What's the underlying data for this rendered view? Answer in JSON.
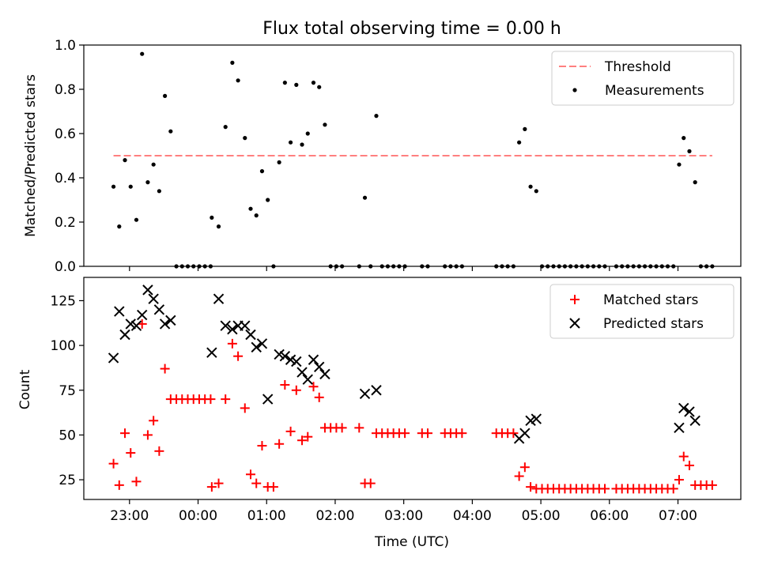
{
  "chart_data": [
    {
      "type": "scatter",
      "title": "Flux total observing time = 0.00 h",
      "xlabel": "",
      "ylabel": "Matched/Predicted stars",
      "ylim": [
        0,
        1.0
      ],
      "yticks": [
        "0.0",
        "0.2",
        "0.4",
        "0.6",
        "0.8",
        "1.0"
      ],
      "legend_position": "top-right",
      "threshold": {
        "name": "Threshold",
        "value": 0.5,
        "x_range": [
          "22:46",
          "07:30"
        ],
        "color": "#ff7f7f",
        "style": "dashed"
      },
      "series": [
        {
          "name": "Measurements",
          "color": "#000000",
          "marker": "dot",
          "points": [
            [
              "22:46",
              0.36
            ],
            [
              "22:51",
              0.18
            ],
            [
              "22:56",
              0.48
            ],
            [
              "23:01",
              0.36
            ],
            [
              "23:06",
              0.21
            ],
            [
              "23:11",
              0.96
            ],
            [
              "23:16",
              0.38
            ],
            [
              "23:21",
              0.46
            ],
            [
              "23:26",
              0.34
            ],
            [
              "23:31",
              0.77
            ],
            [
              "23:36",
              0.61
            ],
            [
              "23:41",
              0.0
            ],
            [
              "23:46",
              0.0
            ],
            [
              "23:51",
              0.0
            ],
            [
              "23:56",
              0.0
            ],
            [
              "00:01",
              0.0
            ],
            [
              "00:06",
              0.0
            ],
            [
              "00:11",
              0.0
            ],
            [
              "00:12",
              0.22
            ],
            [
              "00:18",
              0.18
            ],
            [
              "00:24",
              0.63
            ],
            [
              "00:30",
              0.92
            ],
            [
              "00:35",
              0.84
            ],
            [
              "00:41",
              0.58
            ],
            [
              "00:46",
              0.26
            ],
            [
              "00:51",
              0.23
            ],
            [
              "00:56",
              0.43
            ],
            [
              "01:01",
              0.3
            ],
            [
              "01:06",
              0.0
            ],
            [
              "01:11",
              0.47
            ],
            [
              "01:16",
              0.83
            ],
            [
              "01:21",
              0.56
            ],
            [
              "01:26",
              0.82
            ],
            [
              "01:31",
              0.55
            ],
            [
              "01:36",
              0.6
            ],
            [
              "01:41",
              0.83
            ],
            [
              "01:46",
              0.81
            ],
            [
              "01:51",
              0.64
            ],
            [
              "01:56",
              0.0
            ],
            [
              "02:01",
              0.0
            ],
            [
              "02:06",
              0.0
            ],
            [
              "02:21",
              0.0
            ],
            [
              "02:26",
              0.31
            ],
            [
              "02:31",
              0.0
            ],
            [
              "02:36",
              0.68
            ],
            [
              "02:41",
              0.0
            ],
            [
              "02:46",
              0.0
            ],
            [
              "02:51",
              0.0
            ],
            [
              "02:56",
              0.0
            ],
            [
              "03:01",
              0.0
            ],
            [
              "03:16",
              0.0
            ],
            [
              "03:21",
              0.0
            ],
            [
              "03:36",
              0.0
            ],
            [
              "03:41",
              0.0
            ],
            [
              "03:46",
              0.0
            ],
            [
              "03:51",
              0.0
            ],
            [
              "04:21",
              0.0
            ],
            [
              "04:26",
              0.0
            ],
            [
              "04:31",
              0.0
            ],
            [
              "04:36",
              0.0
            ],
            [
              "04:41",
              0.56
            ],
            [
              "04:46",
              0.62
            ],
            [
              "04:51",
              0.36
            ],
            [
              "04:56",
              0.34
            ],
            [
              "05:01",
              0.0
            ],
            [
              "05:06",
              0.0
            ],
            [
              "05:11",
              0.0
            ],
            [
              "05:16",
              0.0
            ],
            [
              "05:21",
              0.0
            ],
            [
              "05:26",
              0.0
            ],
            [
              "05:31",
              0.0
            ],
            [
              "05:36",
              0.0
            ],
            [
              "05:41",
              0.0
            ],
            [
              "05:46",
              0.0
            ],
            [
              "05:51",
              0.0
            ],
            [
              "05:56",
              0.0
            ],
            [
              "06:06",
              0.0
            ],
            [
              "06:11",
              0.0
            ],
            [
              "06:16",
              0.0
            ],
            [
              "06:21",
              0.0
            ],
            [
              "06:26",
              0.0
            ],
            [
              "06:31",
              0.0
            ],
            [
              "06:36",
              0.0
            ],
            [
              "06:41",
              0.0
            ],
            [
              "06:46",
              0.0
            ],
            [
              "06:51",
              0.0
            ],
            [
              "06:56",
              0.0
            ],
            [
              "07:01",
              0.46
            ],
            [
              "07:05",
              0.58
            ],
            [
              "07:10",
              0.52
            ],
            [
              "07:15",
              0.38
            ],
            [
              "07:20",
              0.0
            ],
            [
              "07:25",
              0.0
            ],
            [
              "07:30",
              0.0
            ]
          ]
        }
      ]
    },
    {
      "type": "scatter",
      "title": "",
      "xlabel": "Time (UTC)",
      "ylabel": "Count",
      "ylim": [
        14,
        138
      ],
      "yticks": [
        "25",
        "50",
        "75",
        "100",
        "125"
      ],
      "legend_position": "top-right",
      "series": [
        {
          "name": "Matched stars",
          "color": "#ff0000",
          "marker": "plus",
          "points": [
            [
              "22:46",
              34
            ],
            [
              "22:51",
              22
            ],
            [
              "22:56",
              51
            ],
            [
              "23:01",
              40
            ],
            [
              "23:06",
              24
            ],
            [
              "23:11",
              112
            ],
            [
              "23:16",
              50
            ],
            [
              "23:21",
              58
            ],
            [
              "23:26",
              41
            ],
            [
              "23:31",
              87
            ],
            [
              "23:36",
              70
            ],
            [
              "23:41",
              70
            ],
            [
              "23:46",
              70
            ],
            [
              "23:51",
              70
            ],
            [
              "23:56",
              70
            ],
            [
              "00:01",
              70
            ],
            [
              "00:06",
              70
            ],
            [
              "00:11",
              70
            ],
            [
              "00:12",
              21
            ],
            [
              "00:18",
              23
            ],
            [
              "00:24",
              70
            ],
            [
              "00:30",
              101
            ],
            [
              "00:35",
              94
            ],
            [
              "00:41",
              65
            ],
            [
              "00:46",
              28
            ],
            [
              "00:51",
              23
            ],
            [
              "00:56",
              44
            ],
            [
              "01:01",
              21
            ],
            [
              "01:06",
              21
            ],
            [
              "01:11",
              45
            ],
            [
              "01:16",
              78
            ],
            [
              "01:21",
              52
            ],
            [
              "01:26",
              75
            ],
            [
              "01:31",
              47
            ],
            [
              "01:36",
              49
            ],
            [
              "01:41",
              77
            ],
            [
              "01:46",
              71
            ],
            [
              "01:51",
              54
            ],
            [
              "01:56",
              54
            ],
            [
              "02:01",
              54
            ],
            [
              "02:06",
              54
            ],
            [
              "02:21",
              54
            ],
            [
              "02:26",
              23
            ],
            [
              "02:31",
              23
            ],
            [
              "02:36",
              51
            ],
            [
              "02:41",
              51
            ],
            [
              "02:46",
              51
            ],
            [
              "02:51",
              51
            ],
            [
              "02:56",
              51
            ],
            [
              "03:01",
              51
            ],
            [
              "03:16",
              51
            ],
            [
              "03:21",
              51
            ],
            [
              "03:36",
              51
            ],
            [
              "03:41",
              51
            ],
            [
              "03:46",
              51
            ],
            [
              "03:51",
              51
            ],
            [
              "04:21",
              51
            ],
            [
              "04:26",
              51
            ],
            [
              "04:31",
              51
            ],
            [
              "04:36",
              51
            ],
            [
              "04:41",
              27
            ],
            [
              "04:46",
              32
            ],
            [
              "04:51",
              21
            ],
            [
              "04:56",
              20
            ],
            [
              "05:01",
              20
            ],
            [
              "05:06",
              20
            ],
            [
              "05:11",
              20
            ],
            [
              "05:16",
              20
            ],
            [
              "05:21",
              20
            ],
            [
              "05:26",
              20
            ],
            [
              "05:31",
              20
            ],
            [
              "05:36",
              20
            ],
            [
              "05:41",
              20
            ],
            [
              "05:46",
              20
            ],
            [
              "05:51",
              20
            ],
            [
              "05:56",
              20
            ],
            [
              "06:06",
              20
            ],
            [
              "06:11",
              20
            ],
            [
              "06:16",
              20
            ],
            [
              "06:21",
              20
            ],
            [
              "06:26",
              20
            ],
            [
              "06:31",
              20
            ],
            [
              "06:36",
              20
            ],
            [
              "06:41",
              20
            ],
            [
              "06:46",
              20
            ],
            [
              "06:51",
              20
            ],
            [
              "06:56",
              20
            ],
            [
              "07:01",
              25
            ],
            [
              "07:05",
              38
            ],
            [
              "07:10",
              33
            ],
            [
              "07:15",
              22
            ],
            [
              "07:20",
              22
            ],
            [
              "07:25",
              22
            ],
            [
              "07:30",
              22
            ]
          ]
        },
        {
          "name": "Predicted stars",
          "color": "#000000",
          "marker": "x",
          "points": [
            [
              "22:46",
              93
            ],
            [
              "22:51",
              119
            ],
            [
              "22:56",
              106
            ],
            [
              "23:01",
              112
            ],
            [
              "23:06",
              111
            ],
            [
              "23:11",
              117
            ],
            [
              "23:16",
              131
            ],
            [
              "23:21",
              126
            ],
            [
              "23:26",
              120
            ],
            [
              "23:31",
              112
            ],
            [
              "23:36",
              114
            ],
            [
              "00:12",
              96
            ],
            [
              "00:18",
              126
            ],
            [
              "00:24",
              111
            ],
            [
              "00:30",
              109
            ],
            [
              "00:35",
              111
            ],
            [
              "00:41",
              111
            ],
            [
              "00:46",
              106
            ],
            [
              "00:51",
              99
            ],
            [
              "00:56",
              101
            ],
            [
              "01:01",
              70
            ],
            [
              "01:11",
              95
            ],
            [
              "01:16",
              94
            ],
            [
              "01:21",
              92
            ],
            [
              "01:26",
              91
            ],
            [
              "01:31",
              85
            ],
            [
              "01:36",
              81
            ],
            [
              "01:41",
              92
            ],
            [
              "01:46",
              88
            ],
            [
              "01:51",
              84
            ],
            [
              "02:26",
              73
            ],
            [
              "02:36",
              75
            ],
            [
              "04:41",
              48
            ],
            [
              "04:46",
              51
            ],
            [
              "04:51",
              58
            ],
            [
              "04:56",
              59
            ],
            [
              "07:01",
              54
            ],
            [
              "07:05",
              65
            ],
            [
              "07:10",
              63
            ],
            [
              "07:15",
              58
            ]
          ]
        }
      ],
      "xticks": [
        "23:00",
        "00:00",
        "01:00",
        "02:00",
        "03:00",
        "04:00",
        "05:00",
        "06:00",
        "07:00"
      ],
      "xlim": [
        "22:20",
        "07:55"
      ]
    }
  ]
}
